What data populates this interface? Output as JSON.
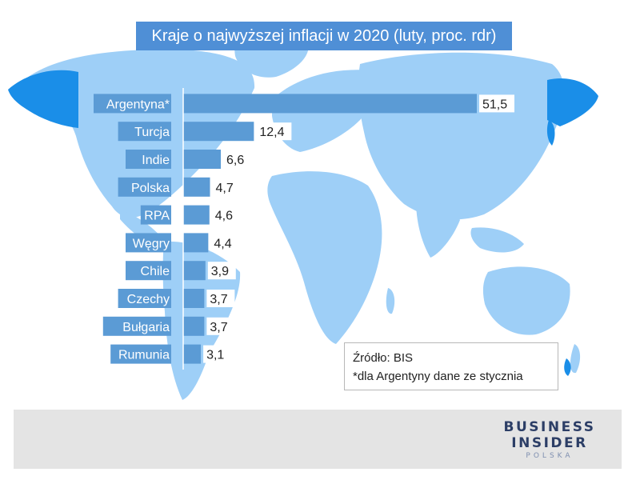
{
  "title": "Kraje o najwyższej inflacji w 2020 (luty, proc. rdr)",
  "chart_data": {
    "type": "bar",
    "orientation": "horizontal",
    "title": "Kraje o najwyższej inflacji w 2020 (luty, proc. rdr)",
    "categories": [
      "Argentyna*",
      "Turcja",
      "Indie",
      "Polska",
      "RPA",
      "Węgry",
      "Chile",
      "Czechy",
      "Bułgaria",
      "Rumunia"
    ],
    "values": [
      51.5,
      12.4,
      6.6,
      4.7,
      4.6,
      4.4,
      3.9,
      3.7,
      3.7,
      3.1
    ],
    "value_labels": [
      "51,5",
      "12,4",
      "6,6",
      "4,7",
      "4,6",
      "4,4",
      "3,9",
      "3,7",
      "3,7",
      "3,1"
    ],
    "xlabel": "",
    "ylabel": "",
    "bar_color": "#5b9bd5",
    "label_bg_color": "#5b9bd5",
    "grid": false
  },
  "source": {
    "line1": "Źródło: BIS",
    "line2": "*dla Argentyny dane ze stycznia"
  },
  "logo": {
    "line1": "BUSINESS",
    "line2": "INSIDER",
    "line3": "POLSKA"
  },
  "colors": {
    "map_light": "#9ecff7",
    "map_dark": "#1a8ee8",
    "title_bg": "#4f8fd6",
    "footer_bg": "#e4e4e4"
  }
}
